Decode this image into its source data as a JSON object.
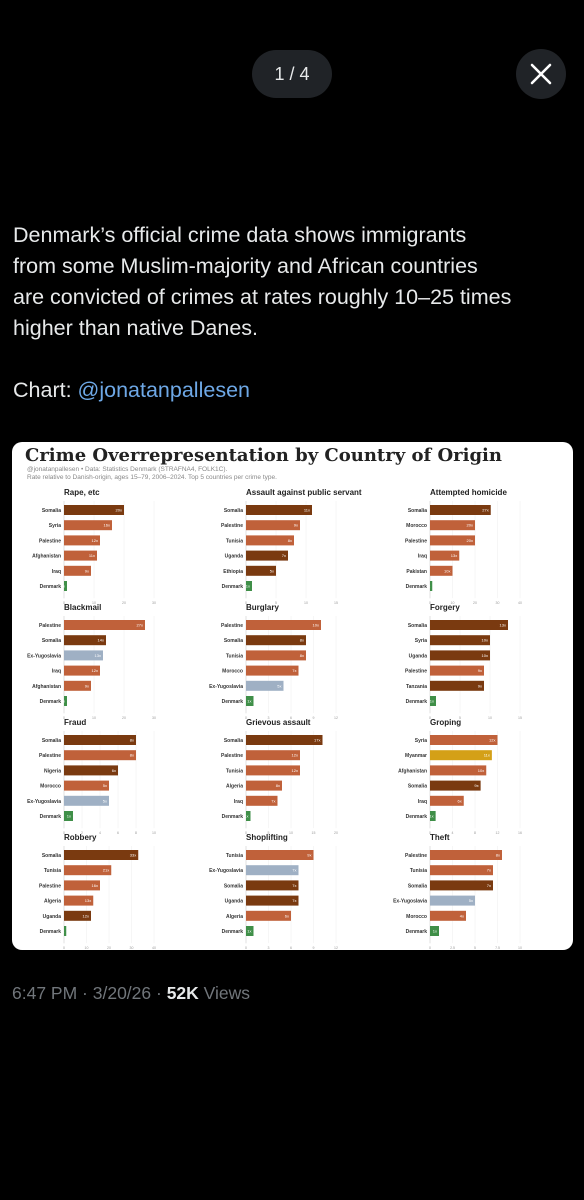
{
  "viewer": {
    "counter": "1 / 4"
  },
  "tweet": {
    "text_line1": "Denmark’s official crime data shows immigrants",
    "text_line2": "from some Muslim-majority and African countries",
    "text_line3": "are convicted of crimes at rates roughly 10–25 times",
    "text_line4": "higher than native Danes.",
    "chart_prefix": "Chart: ",
    "chart_handle": "@jonatanpallesen",
    "time": "6:47 PM",
    "sep1": " · ",
    "date": "3/20/26",
    "sep2": " · ",
    "views_count": "52K",
    "views_label": " Views"
  },
  "colors": {
    "muslim": "#c0613a",
    "somalia": "#7a3a10",
    "yugoslavia": "#9fb0c4",
    "myanmar": "#d4a017",
    "denmark": "#3f8f48"
  },
  "chart_title": "Crime Overrepresentation by Country of Origin",
  "chart_subtitle_1": "@jonatanpallesen • Data: Statistics Denmark (STRAFNA4, FOLK1C).",
  "chart_subtitle_2": "Rate relative to Danish-origin, ages 15–79, 2006–2024. Top 5 countries per crime type.",
  "chart_data": [
    {
      "type": "bar",
      "title": "Rape, etc",
      "categories": [
        "Somalia",
        "Syria",
        "Palestine",
        "Afghanistan",
        "Iraq",
        "Denmark"
      ],
      "values": [
        20,
        16,
        12,
        11,
        9,
        1
      ],
      "labels": [
        "20x",
        "16x",
        "12x",
        "11x",
        "9x",
        "1x"
      ],
      "colors": [
        "somalia",
        "muslim",
        "muslim",
        "muslim",
        "muslim",
        "denmark"
      ],
      "xlim": [
        0,
        30
      ],
      "ticks": [
        0,
        10,
        20,
        30
      ]
    },
    {
      "type": "bar",
      "title": "Assault against public servant",
      "categories": [
        "Somalia",
        "Palestine",
        "Tunisia",
        "Uganda",
        "Ethiopia",
        "Denmark"
      ],
      "values": [
        11,
        9,
        8,
        7,
        5,
        1
      ],
      "labels": [
        "11x",
        "9x",
        "8x",
        "7x",
        "5x",
        "1x"
      ],
      "colors": [
        "somalia",
        "muslim",
        "muslim",
        "somalia",
        "somalia",
        "denmark"
      ],
      "xlim": [
        0,
        15
      ],
      "ticks": [
        0,
        5,
        10,
        15
      ]
    },
    {
      "type": "bar",
      "title": "Attempted homicide",
      "categories": [
        "Somalia",
        "Morocco",
        "Palestine",
        "Iraq",
        "Pakistan",
        "Denmark"
      ],
      "values": [
        27,
        20,
        20,
        13,
        10,
        1
      ],
      "labels": [
        "27x",
        "20x",
        "20x",
        "13x",
        "10x",
        "1x"
      ],
      "colors": [
        "somalia",
        "muslim",
        "muslim",
        "muslim",
        "muslim",
        "denmark"
      ],
      "xlim": [
        0,
        40
      ],
      "ticks": [
        0,
        10,
        20,
        30,
        40
      ]
    },
    {
      "type": "bar",
      "title": "Blackmail",
      "categories": [
        "Palestine",
        "Somalia",
        "Ex-Yugoslavia",
        "Iraq",
        "Afghanistan",
        "Denmark"
      ],
      "values": [
        27,
        14,
        13,
        12,
        9,
        1
      ],
      "labels": [
        "27x",
        "14x",
        "13x",
        "12x",
        "9x",
        "1x"
      ],
      "colors": [
        "muslim",
        "somalia",
        "yugoslavia",
        "muslim",
        "muslim",
        "denmark"
      ],
      "xlim": [
        0,
        30
      ],
      "ticks": [
        0,
        10,
        20,
        30
      ]
    },
    {
      "type": "bar",
      "title": "Burglary",
      "categories": [
        "Palestine",
        "Somalia",
        "Tunisia",
        "Morocco",
        "Ex-Yugoslavia",
        "Denmark"
      ],
      "values": [
        10,
        8,
        8,
        7,
        5,
        1
      ],
      "labels": [
        "10x",
        "8x",
        "8x",
        "7x",
        "5x",
        "1x"
      ],
      "colors": [
        "muslim",
        "somalia",
        "muslim",
        "muslim",
        "yugoslavia",
        "denmark"
      ],
      "xlim": [
        0,
        12
      ],
      "ticks": [
        0,
        3,
        6,
        9,
        12
      ]
    },
    {
      "type": "bar",
      "title": "Forgery",
      "categories": [
        "Somalia",
        "Syria",
        "Uganda",
        "Palestine",
        "Tanzania",
        "Denmark"
      ],
      "values": [
        13,
        10,
        10,
        9,
        9,
        1
      ],
      "labels": [
        "13x",
        "10x",
        "10x",
        "9x",
        "9x",
        "1x"
      ],
      "colors": [
        "somalia",
        "somalia",
        "somalia",
        "muslim",
        "somalia",
        "denmark"
      ],
      "xlim": [
        0,
        15
      ],
      "ticks": [
        0,
        5,
        10,
        15
      ]
    },
    {
      "type": "bar",
      "title": "Fraud",
      "categories": [
        "Somalia",
        "Palestine",
        "Nigeria",
        "Morocco",
        "Ex-Yugoslavia",
        "Denmark"
      ],
      "values": [
        8,
        8,
        6,
        5,
        5,
        1
      ],
      "labels": [
        "8x",
        "8x",
        "6x",
        "5x",
        "5x",
        "1x"
      ],
      "colors": [
        "somalia",
        "muslim",
        "somalia",
        "muslim",
        "yugoslavia",
        "denmark"
      ],
      "xlim": [
        0,
        10
      ],
      "ticks": [
        0,
        2,
        4,
        6,
        8,
        10
      ]
    },
    {
      "type": "bar",
      "title": "Grievous assault",
      "categories": [
        "Somalia",
        "Palestine",
        "Tunisia",
        "Algeria",
        "Iraq",
        "Denmark"
      ],
      "values": [
        17,
        12,
        12,
        8,
        7,
        1
      ],
      "labels": [
        "17x",
        "12x",
        "12x",
        "8x",
        "7x",
        "1x"
      ],
      "colors": [
        "somalia",
        "muslim",
        "muslim",
        "muslim",
        "muslim",
        "denmark"
      ],
      "xlim": [
        0,
        20
      ],
      "ticks": [
        0,
        5,
        10,
        15,
        20
      ]
    },
    {
      "type": "bar",
      "title": "Groping",
      "categories": [
        "Syria",
        "Myanmar",
        "Afghanistan",
        "Somalia",
        "Iraq",
        "Denmark"
      ],
      "values": [
        12,
        11,
        10,
        9,
        6,
        1
      ],
      "labels": [
        "12x",
        "11x",
        "10x",
        "9x",
        "6x",
        "1x"
      ],
      "colors": [
        "muslim",
        "myanmar",
        "muslim",
        "somalia",
        "muslim",
        "denmark"
      ],
      "xlim": [
        0,
        16
      ],
      "ticks": [
        0,
        4,
        8,
        12,
        16
      ]
    },
    {
      "type": "bar",
      "title": "Robbery",
      "categories": [
        "Somalia",
        "Tunisia",
        "Palestine",
        "Algeria",
        "Uganda",
        "Denmark"
      ],
      "values": [
        33,
        21,
        16,
        13,
        12,
        1
      ],
      "labels": [
        "33x",
        "21x",
        "16x",
        "13x",
        "12x",
        "1x"
      ],
      "colors": [
        "somalia",
        "muslim",
        "muslim",
        "muslim",
        "somalia",
        "denmark"
      ],
      "xlim": [
        0,
        40
      ],
      "ticks": [
        0,
        10,
        20,
        30,
        40
      ]
    },
    {
      "type": "bar",
      "title": "Shoplifting",
      "categories": [
        "Tunisia",
        "Ex-Yugoslavia",
        "Somalia",
        "Uganda",
        "Algeria",
        "Denmark"
      ],
      "values": [
        9,
        7,
        7,
        7,
        6,
        1
      ],
      "labels": [
        "9x",
        "7x",
        "7x",
        "7x",
        "6x",
        "1x"
      ],
      "colors": [
        "muslim",
        "yugoslavia",
        "somalia",
        "somalia",
        "muslim",
        "denmark"
      ],
      "xlim": [
        0,
        12
      ],
      "ticks": [
        0,
        3,
        6,
        9,
        12
      ]
    },
    {
      "type": "bar",
      "title": "Theft",
      "categories": [
        "Palestine",
        "Tunisia",
        "Somalia",
        "Ex-Yugoslavia",
        "Morocco",
        "Denmark"
      ],
      "values": [
        8,
        7,
        7,
        5,
        4,
        1
      ],
      "labels": [
        "8x",
        "7x",
        "7x",
        "5x",
        "4x",
        "1x"
      ],
      "colors": [
        "muslim",
        "muslim",
        "somalia",
        "yugoslavia",
        "muslim",
        "denmark"
      ],
      "xlim": [
        0,
        10
      ],
      "ticks": [
        0,
        2.5,
        5,
        7.5,
        10
      ]
    }
  ]
}
